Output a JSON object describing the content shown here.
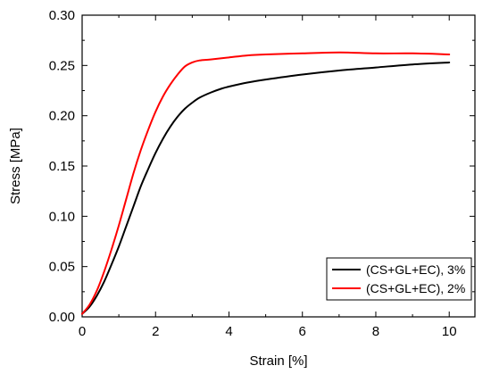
{
  "chart_data": {
    "type": "line",
    "title": "",
    "xlabel": "Strain [%]",
    "ylabel": "Stress [MPa]",
    "xlim": [
      0,
      10.7
    ],
    "ylim": [
      0,
      0.3
    ],
    "x_ticks": [
      0,
      2,
      4,
      6,
      8,
      10
    ],
    "x_tick_labels": [
      "0",
      "2",
      "4",
      "6",
      "8",
      "10"
    ],
    "y_ticks": [
      0.0,
      0.05,
      0.1,
      0.15,
      0.2,
      0.25,
      0.3
    ],
    "y_tick_labels": [
      "0.00",
      "0.05",
      "0.10",
      "0.15",
      "0.20",
      "0.25",
      "0.30"
    ],
    "grid": false,
    "legend_position": "bottom-right",
    "series": [
      {
        "name": "(CS+GL+EC), 3%",
        "color": "#000000",
        "x": [
          0,
          0.2,
          0.4,
          0.6,
          0.8,
          1.0,
          1.2,
          1.4,
          1.6,
          1.8,
          2.0,
          2.2,
          2.4,
          2.6,
          2.8,
          3.0,
          3.2,
          3.5,
          3.8,
          4.0,
          4.5,
          5.0,
          6.0,
          7.0,
          8.0,
          9.0,
          10.0
        ],
        "y": [
          0.003,
          0.01,
          0.021,
          0.035,
          0.052,
          0.07,
          0.09,
          0.11,
          0.13,
          0.147,
          0.163,
          0.177,
          0.189,
          0.199,
          0.207,
          0.213,
          0.218,
          0.223,
          0.227,
          0.229,
          0.233,
          0.236,
          0.241,
          0.245,
          0.248,
          0.251,
          0.253
        ]
      },
      {
        "name": "(CS+GL+EC), 2%",
        "color": "#ff0000",
        "x": [
          0,
          0.2,
          0.4,
          0.6,
          0.8,
          1.0,
          1.2,
          1.4,
          1.6,
          1.8,
          2.0,
          2.2,
          2.4,
          2.6,
          2.8,
          3.0,
          3.2,
          3.5,
          4.0,
          4.5,
          5.0,
          6.0,
          7.0,
          8.0,
          9.0,
          10.0
        ],
        "y": [
          0.003,
          0.012,
          0.026,
          0.045,
          0.067,
          0.091,
          0.117,
          0.143,
          0.166,
          0.186,
          0.204,
          0.219,
          0.231,
          0.241,
          0.249,
          0.253,
          0.255,
          0.256,
          0.258,
          0.26,
          0.261,
          0.262,
          0.263,
          0.262,
          0.262,
          0.261
        ]
      }
    ]
  }
}
